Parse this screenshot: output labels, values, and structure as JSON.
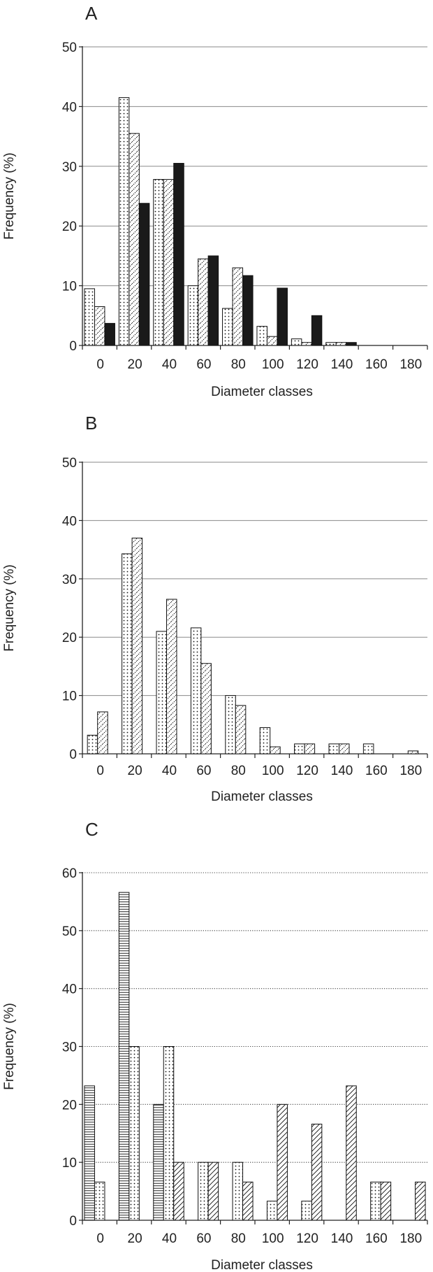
{
  "chart_data": [
    {
      "panel": "A",
      "type": "bar",
      "categories": [
        "0",
        "20",
        "40",
        "60",
        "80",
        "100",
        "120",
        "140",
        "160",
        "180"
      ],
      "series": [
        {
          "pattern": "dotted",
          "values": [
            9.5,
            41.5,
            27.8,
            10,
            6.2,
            3.2,
            1.1,
            0.5,
            0,
            0
          ]
        },
        {
          "pattern": "diagonal-dotted",
          "values": [
            6.5,
            35.5,
            27.8,
            14.5,
            13,
            1.5,
            0.5,
            0.5,
            0,
            0
          ]
        },
        {
          "pattern": "solid-black",
          "values": [
            3.7,
            23.8,
            30.5,
            15,
            11.7,
            9.6,
            5,
            0.5,
            0,
            0
          ]
        }
      ],
      "xlabel": "Diameter classes",
      "ylabel": "Frequency (%)",
      "yticks": [
        0,
        10,
        20,
        30,
        40,
        50
      ],
      "ylim": [
        0,
        50
      ],
      "grid": "solid",
      "legend": "none"
    },
    {
      "panel": "B",
      "type": "bar",
      "categories": [
        "0",
        "20",
        "40",
        "60",
        "80",
        "100",
        "120",
        "140",
        "160",
        "180"
      ],
      "series": [
        {
          "pattern": "dotted",
          "values": [
            3.2,
            34.3,
            21,
            21.6,
            10,
            4.5,
            1.7,
            1.7,
            1.7,
            0
          ]
        },
        {
          "pattern": "diagonal-dotted",
          "values": [
            7.2,
            37,
            26.5,
            15.5,
            8.3,
            1.2,
            1.7,
            1.7,
            0,
            0.5
          ]
        }
      ],
      "xlabel": "Diameter classes",
      "ylabel": "Frequency (%)",
      "yticks": [
        0,
        10,
        20,
        30,
        40,
        50
      ],
      "ylim": [
        0,
        50
      ],
      "grid": "solid",
      "legend": "none"
    },
    {
      "panel": "C",
      "type": "bar",
      "categories": [
        "0",
        "20",
        "40",
        "60",
        "80",
        "100",
        "120",
        "140",
        "160",
        "180"
      ],
      "series": [
        {
          "pattern": "horizontal-lines",
          "values": [
            23.2,
            56.6,
            20,
            0,
            0,
            0,
            0,
            0,
            0,
            0
          ]
        },
        {
          "pattern": "dotted",
          "values": [
            6.6,
            30,
            30,
            10,
            10,
            3.3,
            3.3,
            0,
            6.6,
            0
          ]
        },
        {
          "pattern": "diagonal-lines",
          "values": [
            0,
            0,
            10,
            10,
            6.6,
            20,
            16.6,
            23.2,
            6.6,
            6.6
          ]
        }
      ],
      "xlabel": "Diameter classes",
      "ylabel": "Frequency (%)",
      "yticks": [
        0,
        10,
        20,
        30,
        40,
        50,
        60
      ],
      "ylim": [
        0,
        60
      ],
      "grid": "dotted",
      "legend": "none"
    }
  ]
}
